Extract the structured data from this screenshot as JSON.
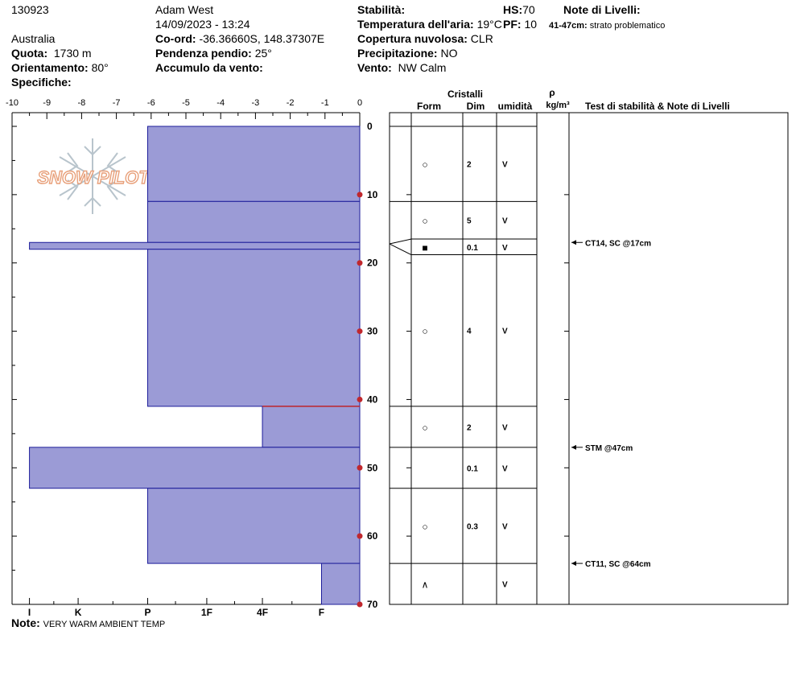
{
  "header": {
    "id": "130923",
    "observer": "Adam West",
    "datetime": "14/09/2023 - 13:24",
    "location": "Australia",
    "elevation_label": "Quota:",
    "elevation": "1730 m",
    "aspect_label": "Orientamento:",
    "aspect": "80°",
    "specifics_label": "Specifiche:",
    "coord_label": "Co-ord:",
    "coord": "-36.36660S, 148.37307E",
    "slope_label": "Pendenza pendio:",
    "slope": "25°",
    "wind_loading_label": "Accumulo da vento:",
    "stability_label": "Stabilità:",
    "air_temp_label": "Temperatura dell'aria:",
    "air_temp": "19°C",
    "cloud_label": "Copertura nuvolosa:",
    "cloud": "CLR",
    "precip_label": "Precipitazione:",
    "precip": "NO",
    "wind_label": "Vento:",
    "wind": "NW Calm",
    "hs_label": "HS:",
    "hs": "70",
    "pf_label": "PF:",
    "pf": "10",
    "layer_notes_label": "Note di Livelli:",
    "layer_notes_range": "41-47cm:",
    "layer_notes_text": "strato problematico"
  },
  "logo_text": "SNOW PILOT",
  "footer": {
    "note_label": "Note:",
    "note": "VERY WARM AMBIENT TEMP"
  },
  "table_headers": {
    "crystals": "Cristalli",
    "form": "Form",
    "size": "Dim",
    "moisture": "umidità",
    "rho": "ρ",
    "density_unit": "kg/m³",
    "tests": "Test di stabilità & Note di Livelli"
  },
  "colors": {
    "bar_fill": "#9b9bd6",
    "bar_stroke": "#1c1c9a",
    "marker": "#c0272d",
    "logo": "#e8a07a"
  },
  "chart_data": {
    "type": "snow-profile",
    "temperature_axis": {
      "ticks": [
        "-10",
        "-9",
        "-8",
        "-7",
        "-6",
        "-5",
        "-4",
        "-3",
        "-2",
        "-1",
        "0"
      ],
      "range": [
        -10,
        0
      ]
    },
    "hardness_axis": {
      "ticks": [
        "I",
        "K",
        "P",
        "1F",
        "4F",
        "F"
      ]
    },
    "depth_axis": {
      "ticks": [
        "0",
        "10",
        "20",
        "30",
        "40",
        "50",
        "60",
        "70"
      ],
      "range": [
        0,
        70
      ]
    },
    "hardness_layers": [
      {
        "top": 0,
        "bottom": 11,
        "temp_equiv": -6.1
      },
      {
        "top": 11,
        "bottom": 17,
        "temp_equiv": -6.1
      },
      {
        "top": 17,
        "bottom": 18,
        "temp_equiv": -9.5
      },
      {
        "top": 18,
        "bottom": 41,
        "temp_equiv": -6.1
      },
      {
        "top": 41,
        "bottom": 47,
        "temp_equiv": -2.8
      },
      {
        "top": 47,
        "bottom": 53,
        "temp_equiv": -9.5
      },
      {
        "top": 53,
        "bottom": 64,
        "temp_equiv": -6.1
      },
      {
        "top": 64,
        "bottom": 70,
        "temp_equiv": -1.1
      }
    ],
    "temperature_points": [
      {
        "depth": 10,
        "temp": 0
      },
      {
        "depth": 20,
        "temp": 0
      },
      {
        "depth": 30,
        "temp": 0
      },
      {
        "depth": 40,
        "temp": 0
      },
      {
        "depth": 50,
        "temp": 0
      },
      {
        "depth": 60,
        "temp": 0
      },
      {
        "depth": 70,
        "temp": 0
      }
    ],
    "crystal_layers": [
      {
        "top": 0,
        "bottom": 11,
        "form": "○",
        "size": "2",
        "moisture": "V"
      },
      {
        "top": 11,
        "bottom": 16.5,
        "form": "○",
        "size": "5",
        "moisture": "V"
      },
      {
        "top": 16.5,
        "bottom": 18.8,
        "form": "■",
        "size": "0.1",
        "moisture": "V"
      },
      {
        "top": 18.8,
        "bottom": 41,
        "form": "○",
        "size": "4",
        "moisture": "V"
      },
      {
        "top": 41,
        "bottom": 47,
        "form": "○",
        "size": "2",
        "moisture": "V"
      },
      {
        "top": 47,
        "bottom": 53,
        "form": "",
        "size": "0.1",
        "moisture": "V"
      },
      {
        "top": 53,
        "bottom": 64,
        "form": "○",
        "size": "0.3",
        "moisture": "V"
      },
      {
        "top": 64,
        "bottom": 70,
        "form": "∧",
        "size": "",
        "moisture": "V"
      }
    ],
    "stability_tests": [
      {
        "depth": 17,
        "label": "CT14, SC @17cm"
      },
      {
        "depth": 47,
        "label": "STM @47cm"
      },
      {
        "depth": 64,
        "label": "CT11, SC @64cm"
      }
    ]
  }
}
